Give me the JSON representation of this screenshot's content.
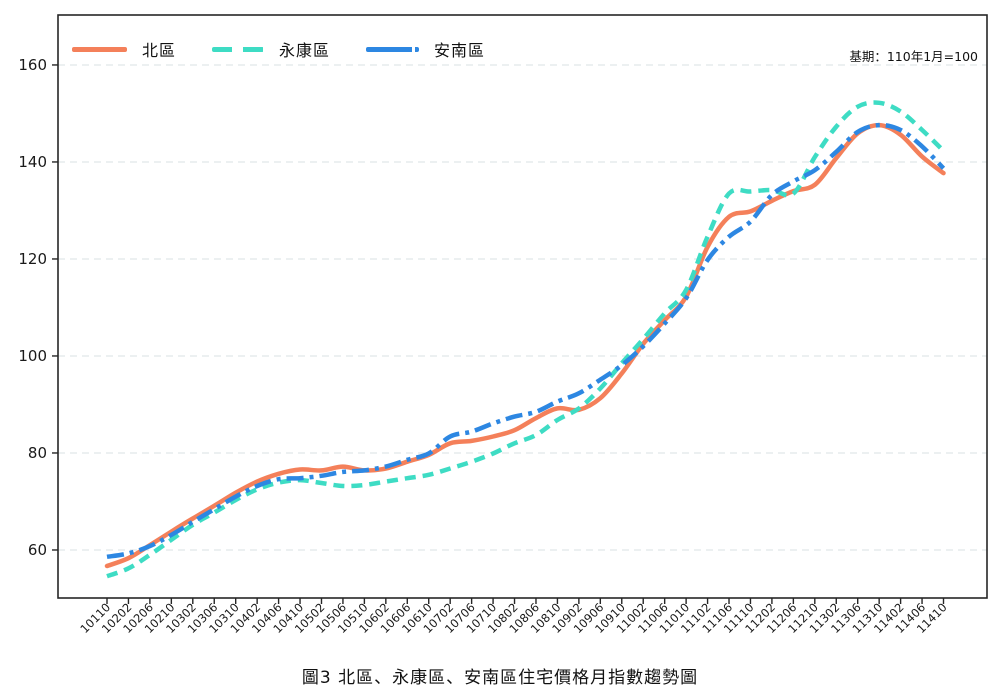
{
  "figure": {
    "annotation": "基期：110年1月=100",
    "title": "圖3 北區、永康區、安南區住宅價格月指數趨勢圖"
  },
  "chart_data": {
    "type": "line",
    "title": "圖3 北區、永康區、安南區住宅價格月指數趨勢圖",
    "annotation": "基期：110年1月=100",
    "xlabel": "",
    "ylabel": "",
    "grid": "horizontal-dashed",
    "legend_position": "top-inside-horizontal",
    "x_tick_rotation": 45,
    "yticks": [
      60,
      80,
      100,
      120,
      140,
      160
    ],
    "ylim": [
      50.1,
      170.3
    ],
    "x_tick_labels": [
      "10110",
      "10202",
      "10206",
      "10210",
      "10302",
      "10306",
      "10310",
      "10402",
      "10406",
      "10410",
      "10502",
      "10506",
      "10510",
      "10602",
      "10606",
      "10610",
      "10702",
      "10706",
      "10710",
      "10802",
      "10806",
      "10810",
      "10902",
      "10906",
      "10910",
      "11002",
      "11006",
      "11010",
      "11102",
      "11106",
      "11110",
      "11202",
      "11206",
      "11210",
      "11302",
      "11306",
      "11310",
      "11402",
      "11406",
      "11410"
    ],
    "series": [
      {
        "name": "北區",
        "color": "#F4805A",
        "style": "solid",
        "values": [
          56.7,
          58.3,
          61.0,
          63.8,
          66.5,
          69.1,
          71.8,
          74.1,
          75.7,
          76.6,
          76.4,
          77.2,
          76.4,
          76.8,
          78.2,
          79.6,
          82.0,
          82.5,
          83.4,
          84.7,
          87.2,
          89.2,
          88.9,
          91.3,
          96.4,
          102.5,
          107.4,
          112.2,
          122.5,
          128.7,
          129.8,
          132.0,
          134.0,
          135.3,
          140.8,
          145.9,
          147.6,
          145.6,
          141.1,
          137.7
        ]
      },
      {
        "name": "永康區",
        "color": "#3EDCC4",
        "style": "dashed",
        "values": [
          54.6,
          56.2,
          59.0,
          62.1,
          65.2,
          67.7,
          70.3,
          72.5,
          73.9,
          74.4,
          73.8,
          73.2,
          73.4,
          74.1,
          74.8,
          75.5,
          76.8,
          78.2,
          79.9,
          82.0,
          83.7,
          86.8,
          89.2,
          93.3,
          98.5,
          103.5,
          108.8,
          113.6,
          124.6,
          133.5,
          133.9,
          134.2,
          133.5,
          141.0,
          147.3,
          151.4,
          152.2,
          150.4,
          146.6,
          142.3
        ]
      },
      {
        "name": "安南區",
        "color": "#2D87E2",
        "style": "dash-dot",
        "values": [
          58.6,
          59.3,
          60.8,
          63.1,
          65.8,
          68.4,
          71.0,
          73.2,
          74.6,
          74.8,
          75.3,
          76.1,
          76.4,
          77.2,
          78.6,
          79.9,
          83.4,
          84.4,
          86.1,
          87.5,
          88.5,
          90.6,
          92.3,
          95.1,
          98.1,
          102.0,
          106.7,
          111.9,
          119.8,
          124.6,
          127.7,
          133.2,
          136.0,
          138.3,
          142.1,
          146.2,
          147.6,
          146.6,
          143.2,
          138.7
        ]
      }
    ]
  }
}
